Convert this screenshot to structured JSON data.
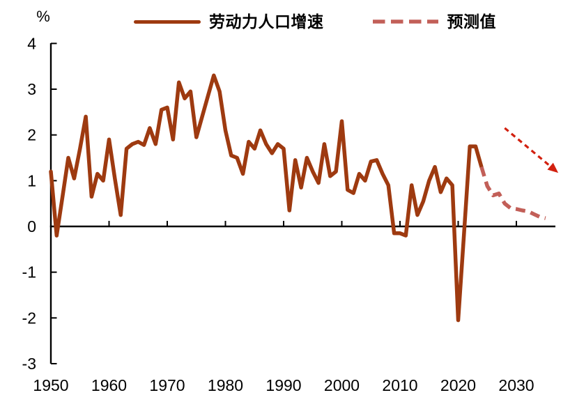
{
  "unit_label": "%",
  "legend": {
    "historical_label": "劳动力人口增速",
    "forecast_label": "预测值"
  },
  "colors": {
    "historical": "#9E3A10",
    "forecast": "#C25F58",
    "arrow": "#D2200F",
    "axis": "#000000"
  },
  "chart_data": {
    "type": "line",
    "title": "",
    "xlabel": "",
    "ylabel": "%",
    "ylim": [
      -3,
      4
    ],
    "xlim": [
      1950,
      2036.5
    ],
    "grid": false,
    "legend_position": "top-center",
    "y_ticks": [
      4,
      3,
      2,
      1,
      0,
      -1,
      -2,
      -3
    ],
    "y_tick_labels": [
      "4",
      "3",
      "2",
      "1",
      "0",
      "-1",
      "-2",
      "-3"
    ],
    "x_ticks": [
      1950,
      1960,
      1970,
      1980,
      1990,
      2000,
      2010,
      2020,
      2030
    ],
    "x_tick_labels": [
      "1950",
      "1960",
      "1970",
      "1980",
      "1990",
      "2000",
      "2010",
      "2020",
      "2030"
    ],
    "series": [
      {
        "name": "劳动力人口增速",
        "style": "solid",
        "color": "#9E3A10",
        "points": [
          [
            1950,
            1.2
          ],
          [
            1951,
            -0.2
          ],
          [
            1952,
            0.65
          ],
          [
            1953,
            1.5
          ],
          [
            1954,
            1.05
          ],
          [
            1955,
            1.7
          ],
          [
            1956,
            2.4
          ],
          [
            1957,
            0.65
          ],
          [
            1958,
            1.15
          ],
          [
            1959,
            1.0
          ],
          [
            1960,
            1.9
          ],
          [
            1961,
            1.05
          ],
          [
            1962,
            0.25
          ],
          [
            1963,
            1.7
          ],
          [
            1964,
            1.8
          ],
          [
            1965,
            1.85
          ],
          [
            1966,
            1.78
          ],
          [
            1967,
            2.15
          ],
          [
            1968,
            1.8
          ],
          [
            1969,
            2.55
          ],
          [
            1970,
            2.6
          ],
          [
            1971,
            1.9
          ],
          [
            1972,
            3.15
          ],
          [
            1973,
            2.8
          ],
          [
            1974,
            2.95
          ],
          [
            1975,
            1.95
          ],
          [
            1976,
            2.4
          ],
          [
            1977,
            2.85
          ],
          [
            1978,
            3.3
          ],
          [
            1979,
            2.95
          ],
          [
            1980,
            2.1
          ],
          [
            1981,
            1.55
          ],
          [
            1982,
            1.5
          ],
          [
            1983,
            1.15
          ],
          [
            1984,
            1.85
          ],
          [
            1985,
            1.7
          ],
          [
            1986,
            2.1
          ],
          [
            1987,
            1.8
          ],
          [
            1988,
            1.6
          ],
          [
            1989,
            1.8
          ],
          [
            1990,
            1.7
          ],
          [
            1991,
            0.35
          ],
          [
            1992,
            1.45
          ],
          [
            1993,
            0.85
          ],
          [
            1994,
            1.5
          ],
          [
            1995,
            1.2
          ],
          [
            1996,
            0.95
          ],
          [
            1997,
            1.8
          ],
          [
            1998,
            1.1
          ],
          [
            1999,
            1.2
          ],
          [
            2000,
            2.3
          ],
          [
            2001,
            0.8
          ],
          [
            2002,
            0.73
          ],
          [
            2003,
            1.15
          ],
          [
            2004,
            1.0
          ],
          [
            2005,
            1.42
          ],
          [
            2006,
            1.45
          ],
          [
            2007,
            1.15
          ],
          [
            2008,
            0.9
          ],
          [
            2009,
            -0.15
          ],
          [
            2010,
            -0.15
          ],
          [
            2011,
            -0.2
          ],
          [
            2012,
            0.9
          ],
          [
            2013,
            0.25
          ],
          [
            2014,
            0.55
          ],
          [
            2015,
            1.0
          ],
          [
            2016,
            1.3
          ],
          [
            2017,
            0.75
          ],
          [
            2018,
            1.05
          ],
          [
            2019,
            0.9
          ],
          [
            2020,
            -2.05
          ],
          [
            2021,
            -0.15
          ],
          [
            2022,
            1.75
          ],
          [
            2023,
            1.75
          ],
          [
            2024,
            1.3
          ]
        ]
      },
      {
        "name": "预测值",
        "style": "dashed",
        "color": "#C25F58",
        "points": [
          [
            2024,
            1.3
          ],
          [
            2025,
            0.88
          ],
          [
            2026,
            0.68
          ],
          [
            2027,
            0.72
          ],
          [
            2028,
            0.5
          ],
          [
            2029,
            0.4
          ],
          [
            2030,
            0.38
          ],
          [
            2031,
            0.35
          ],
          [
            2032,
            0.33
          ],
          [
            2033,
            0.27
          ],
          [
            2034,
            0.21
          ],
          [
            2035,
            0.18
          ]
        ]
      }
    ],
    "annotation_arrow": {
      "description": "dashed red arrow pointing down-right over forecast area",
      "color": "#D2200F",
      "from": {
        "x": 2028,
        "y": 2.15
      },
      "to": {
        "x": 2037.2,
        "y": 1.17
      }
    }
  }
}
